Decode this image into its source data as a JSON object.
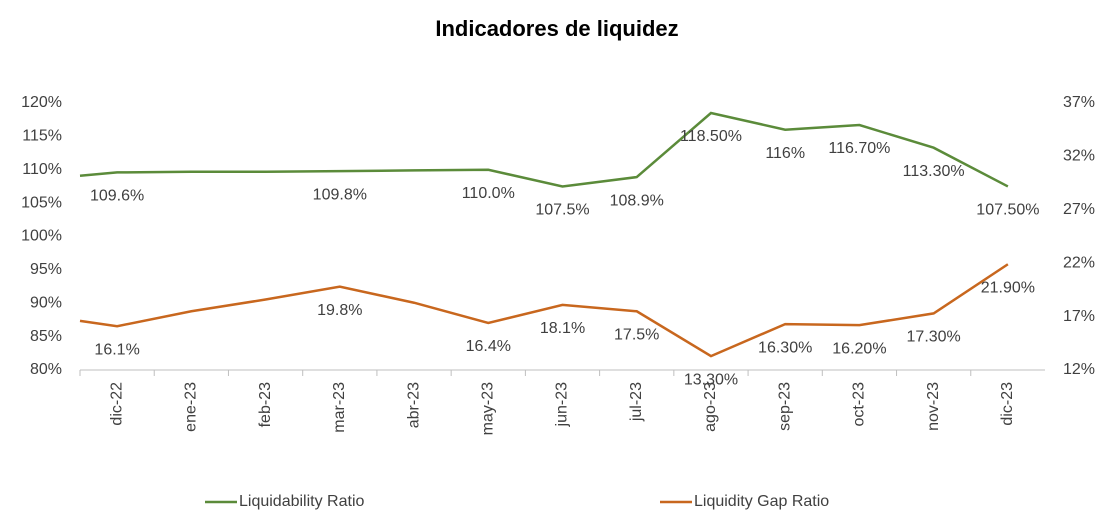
{
  "chart_data": {
    "type": "line",
    "title": "Indicadores de liquidez",
    "categories": [
      null,
      "dic-22",
      "ene-23",
      "feb-23",
      "mar-23",
      "abr-23",
      "may-23",
      "jun-23",
      "jul-23",
      "ago-23",
      "sep-23",
      "oct-23",
      "nov-23",
      "dic-23"
    ],
    "series": [
      {
        "name": "Liquidability Ratio",
        "color": "#5b8b3a",
        "axis": "y",
        "values": [
          109.1,
          109.6,
          109.7,
          109.7,
          109.8,
          109.9,
          110.0,
          107.5,
          108.9,
          118.5,
          116,
          116.7,
          113.3,
          107.5
        ],
        "value_labels": [
          null,
          "109.6%",
          null,
          null,
          "109.8%",
          null,
          "110.0%",
          "107.5%",
          "108.9%",
          "118.50%",
          "116%",
          "116.70%",
          "113.30%",
          "107.50%"
        ]
      },
      {
        "name": "Liquidity Gap Ratio",
        "color": "#c8671e",
        "axis": "y2",
        "values": [
          16.6,
          16.1,
          17.5,
          18.6,
          19.8,
          18.3,
          16.4,
          18.1,
          17.5,
          13.3,
          16.3,
          16.2,
          17.3,
          21.9
        ],
        "value_labels": [
          null,
          "16.1%",
          null,
          null,
          "19.8%",
          null,
          "16.4%",
          "18.1%",
          "17.5%",
          "13.30%",
          "16.30%",
          "16.20%",
          "17.30%",
          "21.90%"
        ]
      }
    ],
    "ylim": [
      80,
      120
    ],
    "yticks": [
      {
        "value": 80,
        "label": "80%"
      },
      {
        "value": 85,
        "label": "85%"
      },
      {
        "value": 90,
        "label": "90%"
      },
      {
        "value": 95,
        "label": "95%"
      },
      {
        "value": 100,
        "label": "100%"
      },
      {
        "value": 105,
        "label": "105%"
      },
      {
        "value": 110,
        "label": "110%"
      },
      {
        "value": 115,
        "label": "115%"
      },
      {
        "value": 120,
        "label": "120%"
      }
    ],
    "y2lim": [
      12,
      37
    ],
    "y2ticks": [
      {
        "value": 12,
        "label": "12%"
      },
      {
        "value": 17,
        "label": "17%"
      },
      {
        "value": 22,
        "label": "22%"
      },
      {
        "value": 27,
        "label": "27%"
      },
      {
        "value": 32,
        "label": "32%"
      },
      {
        "value": 37,
        "label": "37%"
      }
    ],
    "legend": "bottom"
  }
}
